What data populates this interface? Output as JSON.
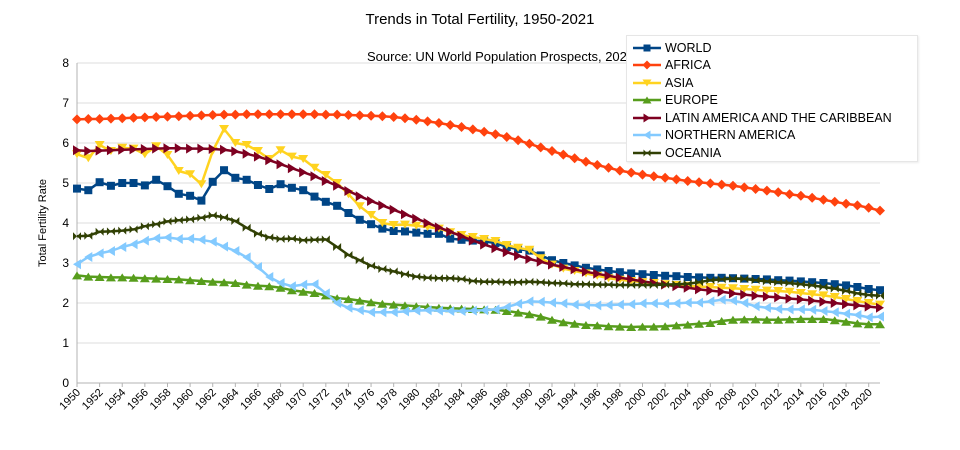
{
  "chart_data": {
    "type": "line",
    "title": "Trends in Total Fertility, 1950-2021",
    "annotation": "Source: UN World Population Prospects, 2022.",
    "xlabel": "",
    "ylabel": "Total Fertility Rate",
    "xlim": [
      1950,
      2021
    ],
    "ylim": [
      0,
      8
    ],
    "yticks": [
      0,
      1,
      2,
      3,
      4,
      5,
      6,
      7,
      8
    ],
    "xticks": [
      1950,
      1952,
      1954,
      1956,
      1958,
      1960,
      1962,
      1964,
      1966,
      1968,
      1970,
      1972,
      1974,
      1976,
      1978,
      1980,
      1982,
      1984,
      1986,
      1988,
      1990,
      1992,
      1994,
      1996,
      1998,
      2000,
      2002,
      2004,
      2006,
      2008,
      2010,
      2012,
      2014,
      2016,
      2018,
      2020
    ],
    "grid": true,
    "legend_position": "top-right",
    "x_start": 1950,
    "series": [
      {
        "name": "WORLD",
        "color": "#004586",
        "marker": "square",
        "values": [
          4.86,
          4.82,
          5.02,
          4.93,
          5.0,
          5.0,
          4.94,
          5.08,
          4.92,
          4.73,
          4.68,
          4.56,
          5.03,
          5.32,
          5.13,
          5.08,
          4.95,
          4.85,
          4.97,
          4.88,
          4.82,
          4.66,
          4.53,
          4.43,
          4.25,
          4.08,
          3.97,
          3.86,
          3.8,
          3.79,
          3.76,
          3.73,
          3.73,
          3.61,
          3.58,
          3.56,
          3.54,
          3.5,
          3.4,
          3.35,
          3.31,
          3.19,
          3.07,
          3.0,
          2.94,
          2.88,
          2.84,
          2.8,
          2.77,
          2.74,
          2.72,
          2.7,
          2.68,
          2.67,
          2.65,
          2.64,
          2.63,
          2.63,
          2.62,
          2.61,
          2.6,
          2.59,
          2.57,
          2.56,
          2.54,
          2.52,
          2.5,
          2.47,
          2.44,
          2.4,
          2.35,
          2.32
        ]
      },
      {
        "name": "AFRICA",
        "color": "#ff420e",
        "marker": "diamond",
        "values": [
          6.59,
          6.6,
          6.6,
          6.61,
          6.62,
          6.63,
          6.64,
          6.65,
          6.66,
          6.67,
          6.68,
          6.69,
          6.7,
          6.71,
          6.71,
          6.72,
          6.72,
          6.72,
          6.72,
          6.72,
          6.72,
          6.72,
          6.71,
          6.71,
          6.7,
          6.69,
          6.68,
          6.67,
          6.65,
          6.62,
          6.58,
          6.54,
          6.5,
          6.45,
          6.4,
          6.34,
          6.28,
          6.22,
          6.15,
          6.07,
          5.98,
          5.89,
          5.8,
          5.71,
          5.62,
          5.53,
          5.45,
          5.38,
          5.31,
          5.26,
          5.21,
          5.17,
          5.13,
          5.09,
          5.05,
          5.02,
          4.99,
          4.96,
          4.93,
          4.89,
          4.85,
          4.81,
          4.77,
          4.72,
          4.68,
          4.63,
          4.58,
          4.53,
          4.48,
          4.44,
          4.38,
          4.31
        ]
      },
      {
        "name": "ASIA",
        "color": "#ffd320",
        "marker": "triangle-down",
        "values": [
          5.72,
          5.62,
          5.95,
          5.8,
          5.88,
          5.86,
          5.72,
          5.92,
          5.7,
          5.3,
          5.22,
          4.97,
          5.8,
          6.35,
          6.0,
          5.95,
          5.8,
          5.6,
          5.82,
          5.66,
          5.6,
          5.38,
          5.2,
          5.0,
          4.72,
          4.42,
          4.2,
          4.0,
          3.95,
          3.96,
          3.93,
          3.9,
          3.86,
          3.77,
          3.7,
          3.65,
          3.6,
          3.55,
          3.45,
          3.38,
          3.33,
          3.12,
          2.96,
          2.86,
          2.8,
          2.74,
          2.68,
          2.62,
          2.58,
          2.55,
          2.52,
          2.5,
          2.47,
          2.45,
          2.43,
          2.41,
          2.4,
          2.38,
          2.37,
          2.35,
          2.33,
          2.31,
          2.3,
          2.28,
          2.25,
          2.22,
          2.19,
          2.15,
          2.1,
          2.05,
          2.0,
          1.96
        ]
      },
      {
        "name": "EUROPE",
        "color": "#579d1c",
        "marker": "triangle-up",
        "values": [
          2.69,
          2.66,
          2.65,
          2.64,
          2.64,
          2.63,
          2.62,
          2.61,
          2.6,
          2.59,
          2.57,
          2.55,
          2.53,
          2.52,
          2.5,
          2.46,
          2.43,
          2.42,
          2.38,
          2.32,
          2.28,
          2.25,
          2.19,
          2.12,
          2.1,
          2.06,
          2.02,
          1.98,
          1.96,
          1.94,
          1.92,
          1.9,
          1.88,
          1.87,
          1.86,
          1.85,
          1.84,
          1.83,
          1.8,
          1.76,
          1.72,
          1.66,
          1.58,
          1.52,
          1.48,
          1.45,
          1.44,
          1.42,
          1.41,
          1.4,
          1.41,
          1.41,
          1.42,
          1.44,
          1.46,
          1.48,
          1.5,
          1.55,
          1.58,
          1.59,
          1.59,
          1.58,
          1.58,
          1.59,
          1.6,
          1.6,
          1.6,
          1.57,
          1.53,
          1.49,
          1.47,
          1.47
        ]
      },
      {
        "name": "LATIN AMERICA AND THE CARIBBEAN",
        "color": "#7e0021",
        "marker": "triangle-right",
        "values": [
          5.82,
          5.8,
          5.81,
          5.82,
          5.83,
          5.84,
          5.85,
          5.86,
          5.87,
          5.87,
          5.86,
          5.86,
          5.85,
          5.83,
          5.79,
          5.73,
          5.66,
          5.57,
          5.47,
          5.37,
          5.27,
          5.17,
          5.05,
          4.93,
          4.8,
          4.67,
          4.55,
          4.44,
          4.33,
          4.22,
          4.11,
          4.0,
          3.89,
          3.78,
          3.67,
          3.56,
          3.46,
          3.37,
          3.27,
          3.18,
          3.1,
          3.03,
          2.96,
          2.9,
          2.84,
          2.78,
          2.73,
          2.68,
          2.63,
          2.59,
          2.54,
          2.5,
          2.46,
          2.42,
          2.38,
          2.34,
          2.31,
          2.28,
          2.24,
          2.21,
          2.18,
          2.16,
          2.14,
          2.11,
          2.09,
          2.06,
          2.03,
          2.0,
          1.97,
          1.94,
          1.91,
          1.88
        ]
      },
      {
        "name": "NORTHERN AMERICA",
        "color": "#83caff",
        "marker": "triangle-left",
        "values": [
          2.97,
          3.15,
          3.24,
          3.3,
          3.4,
          3.47,
          3.56,
          3.62,
          3.64,
          3.6,
          3.61,
          3.58,
          3.53,
          3.41,
          3.3,
          3.14,
          2.9,
          2.65,
          2.5,
          2.42,
          2.46,
          2.47,
          2.24,
          2.0,
          1.88,
          1.82,
          1.77,
          1.77,
          1.77,
          1.79,
          1.81,
          1.82,
          1.81,
          1.8,
          1.8,
          1.81,
          1.82,
          1.84,
          1.9,
          1.98,
          2.04,
          2.03,
          2.01,
          1.99,
          1.96,
          1.95,
          1.94,
          1.95,
          1.96,
          1.97,
          1.99,
          1.99,
          1.98,
          1.99,
          2.01,
          2.01,
          2.04,
          2.08,
          2.06,
          2.0,
          1.92,
          1.88,
          1.85,
          1.84,
          1.84,
          1.83,
          1.8,
          1.77,
          1.73,
          1.7,
          1.64,
          1.66
        ]
      },
      {
        "name": "OCEANIA",
        "color": "#314004",
        "marker": "bowtie",
        "values": [
          3.67,
          3.68,
          3.78,
          3.79,
          3.81,
          3.84,
          3.92,
          3.97,
          4.04,
          4.07,
          4.09,
          4.13,
          4.19,
          4.14,
          4.05,
          3.88,
          3.73,
          3.64,
          3.6,
          3.61,
          3.57,
          3.58,
          3.59,
          3.4,
          3.2,
          3.07,
          2.93,
          2.85,
          2.79,
          2.72,
          2.66,
          2.63,
          2.62,
          2.62,
          2.6,
          2.55,
          2.53,
          2.53,
          2.52,
          2.52,
          2.53,
          2.52,
          2.5,
          2.49,
          2.47,
          2.47,
          2.46,
          2.46,
          2.45,
          2.45,
          2.45,
          2.45,
          2.46,
          2.47,
          2.48,
          2.52,
          2.57,
          2.59,
          2.61,
          2.6,
          2.57,
          2.54,
          2.52,
          2.5,
          2.47,
          2.44,
          2.4,
          2.36,
          2.3,
          2.24,
          2.2,
          2.18
        ]
      }
    ]
  }
}
